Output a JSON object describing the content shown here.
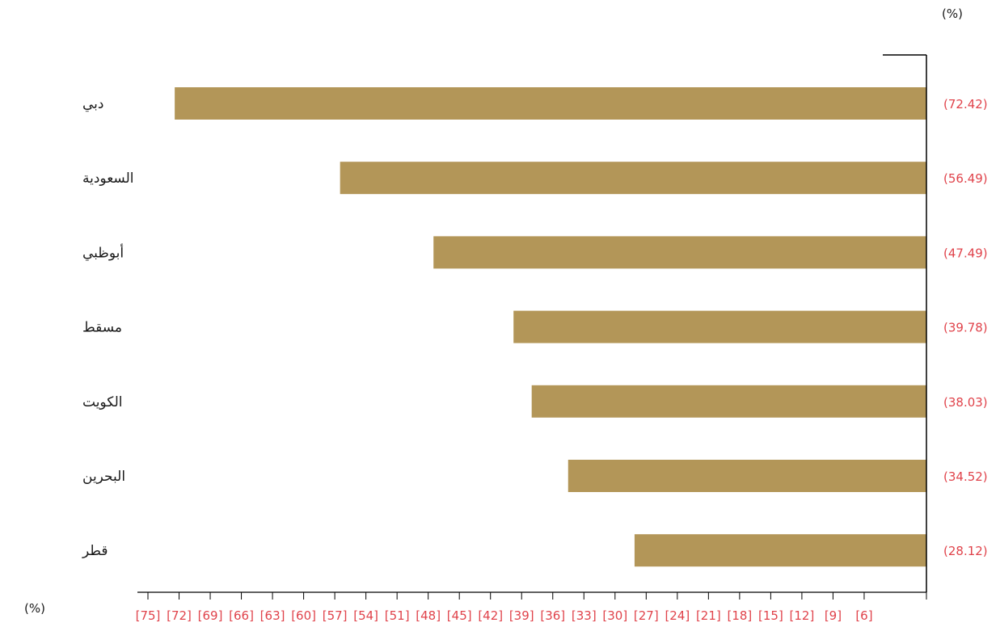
{
  "chart_data": {
    "type": "bar",
    "orientation": "horizontal",
    "title": "",
    "unit_top": "(%)",
    "unit_bottom": "(%)",
    "categories": [
      "دبي",
      "السعودية",
      "أبوظبي",
      "مسقط",
      "الكويت",
      "البحرين",
      "قطر"
    ],
    "values": [
      -72.42,
      -56.49,
      -47.49,
      -39.78,
      -38.03,
      -34.52,
      -28.12
    ],
    "value_labels": [
      "(72.42)",
      "(56.49)",
      "(47.49)",
      "(39.78)",
      "(38.03)",
      "(34.52)",
      "(28.12)"
    ],
    "xlim": [
      -76,
      0
    ],
    "x_ticks": [
      -75,
      -72,
      -69,
      -66,
      -63,
      -60,
      -57,
      -54,
      -51,
      -48,
      -45,
      -42,
      -39,
      -36,
      -33,
      -30,
      -27,
      -24,
      -21,
      -18,
      -15,
      -12,
      -9,
      -6
    ],
    "x_tick_labels": [
      "[75]",
      "[72]",
      "[69]",
      "[66]",
      "[63]",
      "[60]",
      "[57]",
      "[54]",
      "[51]",
      "[48]",
      "[45]",
      "[42]",
      "[39]",
      "[36]",
      "[33]",
      "[30]",
      "[27]",
      "[24]",
      "[21]",
      "[18]",
      "[15]",
      "[12]",
      "[9]",
      "[6]"
    ],
    "grid": false,
    "legend": "none",
    "colors": {
      "bar": "#b39658",
      "value_label": "#e0434b",
      "text": "#1a1a1a",
      "axis": "#000000"
    }
  }
}
